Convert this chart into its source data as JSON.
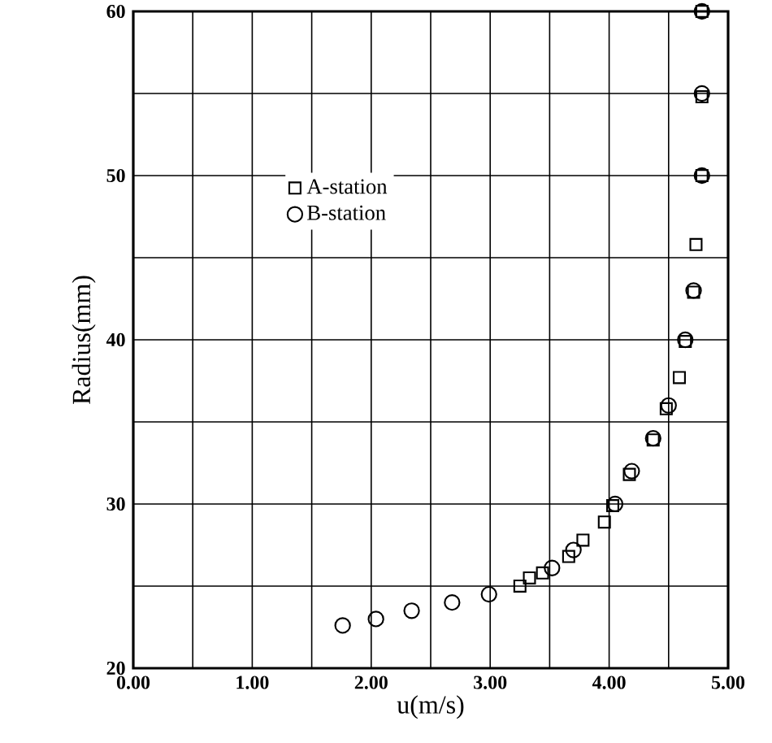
{
  "chart_data": {
    "type": "scatter",
    "xlabel": "u(m/s)",
    "ylabel": "Radius(mm)",
    "xlim": [
      0,
      5
    ],
    "ylim": [
      20,
      60
    ],
    "xticks": [
      {
        "value": 0,
        "label": "0.00"
      },
      {
        "value": 1,
        "label": "1.00"
      },
      {
        "value": 2,
        "label": "2.00"
      },
      {
        "value": 3,
        "label": "3.00"
      },
      {
        "value": 4,
        "label": "4.00"
      },
      {
        "value": 5,
        "label": "5.00"
      }
    ],
    "yticks": [
      20,
      30,
      40,
      50,
      60
    ],
    "grid": true,
    "legend": "top left",
    "series": [
      {
        "name": "A-station",
        "color": "#000000",
        "marker": "square",
        "x": [
          3.25,
          3.33,
          3.44,
          3.66,
          3.78,
          3.96,
          4.03,
          4.17,
          4.37,
          4.48,
          4.59,
          4.64,
          4.71,
          4.73,
          4.78,
          4.78,
          4.78
        ],
        "values": [
          25.0,
          25.5,
          25.8,
          26.8,
          27.8,
          28.9,
          29.9,
          31.8,
          33.9,
          35.8,
          37.7,
          39.9,
          42.9,
          45.8,
          50.0,
          54.8,
          60.0
        ]
      },
      {
        "name": "B-station",
        "color": "#000000",
        "marker": "circle",
        "x": [
          1.76,
          2.04,
          2.34,
          2.68,
          2.99,
          3.52,
          3.7,
          4.05,
          4.19,
          4.37,
          4.5,
          4.64,
          4.71,
          4.78,
          4.78,
          4.78
        ],
        "values": [
          22.6,
          23.0,
          23.5,
          24.0,
          24.5,
          26.1,
          27.2,
          30.0,
          32.0,
          34.0,
          36.0,
          40.0,
          43.0,
          50.0,
          55.0,
          60.0
        ]
      }
    ]
  }
}
